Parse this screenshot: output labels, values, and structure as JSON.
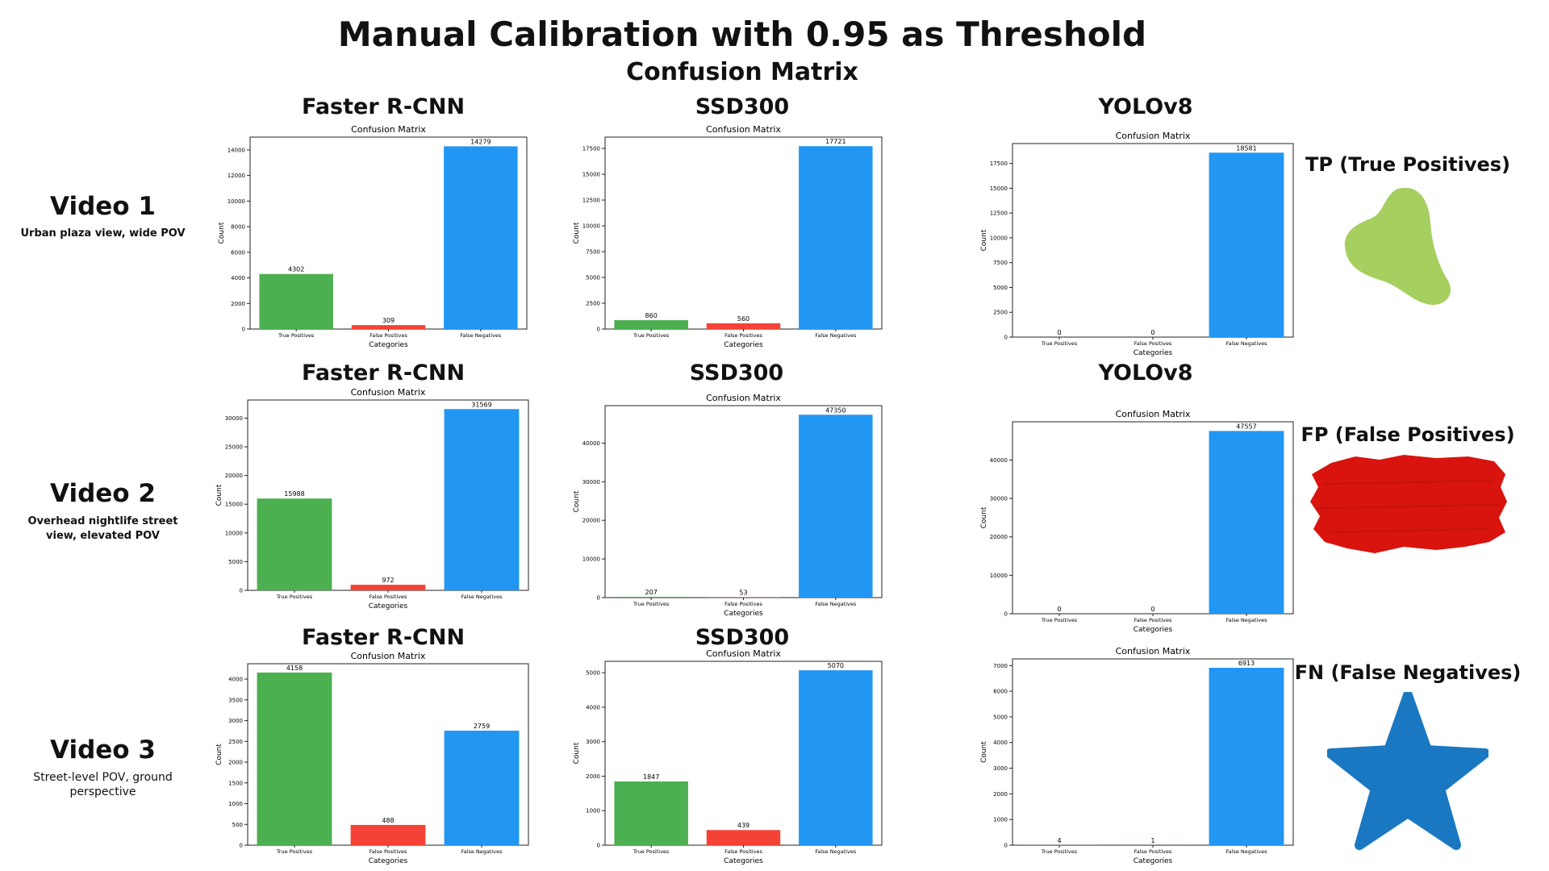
{
  "page": {
    "title": "Manual Calibration with 0.95 as Threshold",
    "subtitle": "Confusion Matrix"
  },
  "videos": [
    {
      "title": "Video 1",
      "description": "Urban plaza view, wide  POV"
    },
    {
      "title": "Video 2",
      "description": "Overhead nightlife street view, elevated POV"
    },
    {
      "title": "Video 3",
      "description": "Street-level POV, ground perspective"
    }
  ],
  "models": {
    "row1": [
      "Faster R-CNN",
      "SSD300",
      "YOLOv8"
    ],
    "row2": [
      "Faster R-CNN",
      "SSD300",
      "YOLOv8"
    ],
    "row3": [
      "Faster R-CNN",
      "SSD300"
    ]
  },
  "legend": {
    "tp": "TP (True Positives)",
    "fp": "FP (False Positives)",
    "fn": "FN (False Negatives)",
    "tp_color": "#a5cf5e",
    "fp_color": "#d9140e",
    "fn_color": "#1a78c2"
  },
  "colors": {
    "tp": "#4caf50",
    "fp": "#f44336",
    "fn": "#2196f3"
  },
  "chart_data": [
    {
      "type": "bar",
      "title": "Confusion Matrix",
      "xlabel": "Categories",
      "ylabel": "Count",
      "categories": [
        "True Positives",
        "False Positives",
        "False Negatives"
      ],
      "values": [
        4302,
        309,
        14279
      ],
      "ylim": [
        0,
        15000
      ],
      "yticks": [
        0,
        2000,
        4000,
        6000,
        8000,
        10000,
        12000,
        14000
      ]
    },
    {
      "type": "bar",
      "title": "Confusion Matrix",
      "xlabel": "Categories",
      "ylabel": "Count",
      "categories": [
        "True Positives",
        "False Positives",
        "False Negatives"
      ],
      "values": [
        860,
        560,
        17721
      ],
      "ylim": [
        0,
        18600
      ],
      "yticks": [
        0,
        2500,
        5000,
        7500,
        10000,
        12500,
        15000,
        17500
      ]
    },
    {
      "type": "bar",
      "title": "Confusion Matrix",
      "xlabel": "Categories",
      "ylabel": "Count",
      "categories": [
        "True Positives",
        "False Positives",
        "False Negatives"
      ],
      "values": [
        0,
        0,
        18581
      ],
      "ylim": [
        0,
        19500
      ],
      "yticks": [
        0,
        2500,
        5000,
        7500,
        10000,
        12500,
        15000,
        17500
      ]
    },
    {
      "type": "bar",
      "title": "Confusion Matrix",
      "xlabel": "Categories",
      "ylabel": "Count",
      "categories": [
        "True Positives",
        "False Positives",
        "False Negatives"
      ],
      "values": [
        15988,
        972,
        31569
      ],
      "ylim": [
        0,
        33150
      ],
      "yticks": [
        0,
        5000,
        10000,
        15000,
        20000,
        25000,
        30000
      ]
    },
    {
      "type": "bar",
      "title": "Confusion Matrix",
      "xlabel": "Categories",
      "ylabel": "Count",
      "categories": [
        "True Positives",
        "False Positives",
        "False Negatives"
      ],
      "values": [
        207,
        53,
        47350
      ],
      "ylim": [
        0,
        49700
      ],
      "yticks": [
        0,
        10000,
        20000,
        30000,
        40000
      ]
    },
    {
      "type": "bar",
      "title": "Confusion Matrix",
      "xlabel": "Categories",
      "ylabel": "Count",
      "categories": [
        "True Positives",
        "False Positives",
        "False Negatives"
      ],
      "values": [
        0,
        0,
        47557
      ],
      "ylim": [
        0,
        49950
      ],
      "yticks": [
        0,
        10000,
        20000,
        30000,
        40000
      ]
    },
    {
      "type": "bar",
      "title": "Confusion Matrix",
      "xlabel": "Categories",
      "ylabel": "Count",
      "categories": [
        "True Positives",
        "False Positives",
        "False Negatives"
      ],
      "values": [
        4158,
        488,
        2759
      ],
      "ylim": [
        0,
        4370
      ],
      "yticks": [
        0,
        500,
        1000,
        1500,
        2000,
        2500,
        3000,
        3500,
        4000
      ]
    },
    {
      "type": "bar",
      "title": "Confusion Matrix",
      "xlabel": "Categories",
      "ylabel": "Count",
      "categories": [
        "True Positives",
        "False Positives",
        "False Negatives"
      ],
      "values": [
        1847,
        439,
        5070
      ],
      "ylim": [
        0,
        5330
      ],
      "yticks": [
        0,
        1000,
        2000,
        3000,
        4000,
        5000
      ]
    },
    {
      "type": "bar",
      "title": "Confusion Matrix",
      "xlabel": "Categories",
      "ylabel": "Count",
      "categories": [
        "True Positives",
        "False Positives",
        "False Negatives"
      ],
      "values": [
        4,
        1,
        6913
      ],
      "ylim": [
        0,
        7260
      ],
      "yticks": [
        0,
        1000,
        2000,
        3000,
        4000,
        5000,
        6000,
        7000
      ]
    }
  ]
}
